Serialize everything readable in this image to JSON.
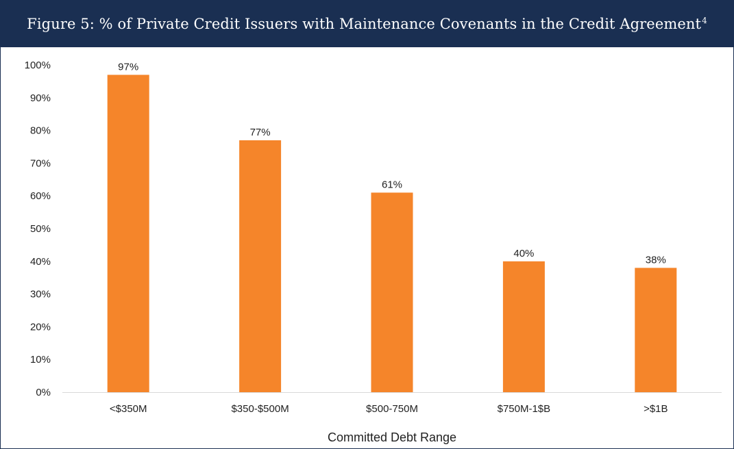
{
  "header": {
    "title": "Figure 5: % of Private Credit Issuers with Maintenance Covenants in the Credit Agreement",
    "footnote": "4"
  },
  "colors": {
    "header_bg": "#1a2f52",
    "bar": "#f5852a"
  },
  "chart_data": {
    "type": "bar",
    "categories": [
      "<$350M",
      "$350-$500M",
      "$500-750M",
      "$750M-1$B",
      ">$1B"
    ],
    "values": [
      97,
      77,
      61,
      40,
      38
    ],
    "data_labels": [
      "97%",
      "77%",
      "61%",
      "40%",
      "38%"
    ],
    "xlabel": "Committed Debt Range",
    "ylabel": "",
    "ylim": [
      0,
      100
    ],
    "yticks": [
      0,
      10,
      20,
      30,
      40,
      50,
      60,
      70,
      80,
      90,
      100
    ],
    "ytick_labels": [
      "0%",
      "10%",
      "20%",
      "30%",
      "40%",
      "50%",
      "60%",
      "70%",
      "80%",
      "90%",
      "100%"
    ],
    "grid": false,
    "legend": "none"
  }
}
